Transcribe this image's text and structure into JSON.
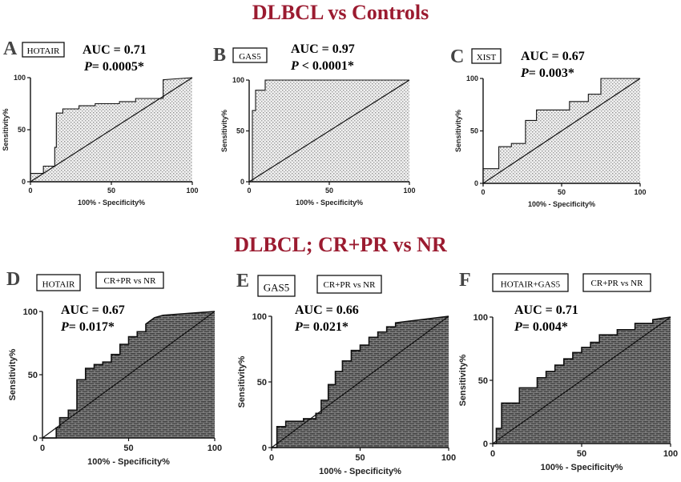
{
  "titles": {
    "top": "DLBCL vs Controls",
    "bottom": "DLBCL; CR+PR vs NR"
  },
  "chart_data": [
    {
      "type": "line",
      "panel": "A",
      "marker": "HOTAIR",
      "auc_line": "AUC = 0.71",
      "p_label": "P",
      "p_value": "= 0.0005*",
      "xlabel": "100% - Specificity%",
      "ylabel": "Sensitivity%",
      "xlim": [
        0,
        100
      ],
      "ylim": [
        0,
        100
      ],
      "xticks": [
        "0",
        "50",
        "100"
      ],
      "yticks": [
        "0",
        "50",
        "100"
      ],
      "series": [
        {
          "x": [
            0,
            8,
            8,
            15,
            15,
            16,
            16,
            20,
            20,
            30,
            30,
            40,
            40,
            55,
            55,
            65,
            65,
            82,
            82,
            100
          ],
          "y": [
            8,
            8,
            15,
            15,
            33,
            33,
            66,
            66,
            70,
            70,
            73,
            73,
            75,
            75,
            77,
            77,
            80,
            80,
            98,
            100
          ]
        }
      ]
    },
    {
      "type": "line",
      "panel": "B",
      "marker": "GAS5",
      "auc_line": "AUC = 0.97",
      "p_label": "P",
      "p_value": " < 0.0001*",
      "xlabel": "100% - Specificity%",
      "ylabel": "Sensitivity%",
      "xlim": [
        0,
        100
      ],
      "ylim": [
        0,
        100
      ],
      "xticks": [
        "0",
        "50",
        "100"
      ],
      "yticks": [
        "0",
        "50",
        "100"
      ],
      "series": [
        {
          "x": [
            0,
            2,
            2,
            4,
            4,
            10,
            10,
            100
          ],
          "y": [
            0,
            0,
            70,
            70,
            90,
            90,
            100,
            100
          ]
        }
      ]
    },
    {
      "type": "line",
      "panel": "C",
      "marker": "XIST",
      "auc_line": "AUC = 0.67",
      "p_label": "P",
      "p_value": "= 0.003*",
      "xlabel": "100% - Specificity%",
      "ylabel": "Sensitivity%",
      "xlim": [
        0,
        100
      ],
      "ylim": [
        0,
        100
      ],
      "xticks": [
        "0",
        "50",
        "100"
      ],
      "yticks": [
        "0",
        "50",
        "100"
      ],
      "series": [
        {
          "x": [
            0,
            0,
            10,
            10,
            18,
            18,
            27,
            27,
            34,
            34,
            55,
            55,
            67,
            67,
            75,
            75,
            100
          ],
          "y": [
            0,
            14,
            14,
            35,
            35,
            38,
            38,
            60,
            60,
            70,
            70,
            78,
            78,
            85,
            85,
            100,
            100
          ]
        }
      ]
    },
    {
      "type": "line",
      "panel": "D",
      "marker": "HOTAIR",
      "comparison": "CR+PR vs NR",
      "auc_line": "AUC =  0.67",
      "p_label": "P",
      "p_value": "=  0.017*",
      "xlabel": "100% - Specificity%",
      "ylabel": "Sensitivity%",
      "xlim": [
        0,
        100
      ],
      "ylim": [
        0,
        100
      ],
      "xticks": [
        "0",
        "50",
        "100"
      ],
      "yticks": [
        "0",
        "50",
        "100"
      ],
      "series": [
        {
          "x": [
            0,
            8,
            8,
            10,
            10,
            15,
            15,
            20,
            20,
            25,
            25,
            30,
            30,
            35,
            35,
            40,
            40,
            45,
            45,
            50,
            50,
            55,
            55,
            60,
            60,
            65,
            70,
            100
          ],
          "y": [
            0,
            0,
            8,
            8,
            16,
            16,
            22,
            22,
            46,
            46,
            55,
            55,
            58,
            58,
            60,
            60,
            66,
            66,
            74,
            74,
            80,
            80,
            84,
            84,
            90,
            95,
            97,
            100
          ]
        }
      ]
    },
    {
      "type": "line",
      "panel": "E",
      "marker": "GAS5",
      "comparison": "CR+PR vs NR",
      "auc_line": "AUC = 0.66",
      "p_label": "P",
      "p_value": "= 0.021*",
      "xlabel": "100% - Specificity%",
      "ylabel": "Sensitivity%",
      "xlim": [
        0,
        100
      ],
      "ylim": [
        0,
        100
      ],
      "xticks": [
        "0",
        "50",
        "100"
      ],
      "yticks": [
        "0",
        "50",
        "100"
      ],
      "series": [
        {
          "x": [
            0,
            3,
            3,
            8,
            8,
            18,
            18,
            25,
            25,
            28,
            28,
            32,
            32,
            36,
            36,
            40,
            40,
            45,
            45,
            50,
            50,
            55,
            55,
            60,
            60,
            65,
            65,
            70,
            70,
            100
          ],
          "y": [
            0,
            0,
            16,
            16,
            20,
            20,
            22,
            22,
            26,
            26,
            36,
            36,
            48,
            48,
            58,
            58,
            66,
            66,
            74,
            74,
            78,
            78,
            84,
            84,
            88,
            88,
            92,
            92,
            95,
            100
          ]
        }
      ]
    },
    {
      "type": "line",
      "panel": "F",
      "marker": "HOTAIR+GAS5",
      "comparison": "CR+PR vs NR",
      "auc_line": "AUC = 0.71",
      "p_label": "P",
      "p_value": "= 0.004*",
      "xlabel": "100% - Specificity%",
      "ylabel": "Sensitivity%",
      "xlim": [
        0,
        100
      ],
      "ylim": [
        0,
        100
      ],
      "xticks": [
        "0",
        "50",
        "100"
      ],
      "yticks": [
        "0",
        "50",
        "100"
      ],
      "series": [
        {
          "x": [
            0,
            2,
            2,
            5,
            5,
            15,
            15,
            25,
            25,
            30,
            30,
            35,
            35,
            40,
            40,
            45,
            45,
            50,
            50,
            55,
            55,
            60,
            60,
            70,
            70,
            80,
            80,
            90,
            90,
            100
          ],
          "y": [
            0,
            0,
            12,
            12,
            32,
            32,
            44,
            44,
            52,
            52,
            57,
            57,
            62,
            62,
            67,
            67,
            72,
            72,
            76,
            76,
            80,
            80,
            86,
            86,
            90,
            90,
            95,
            95,
            98,
            100
          ]
        }
      ]
    }
  ]
}
